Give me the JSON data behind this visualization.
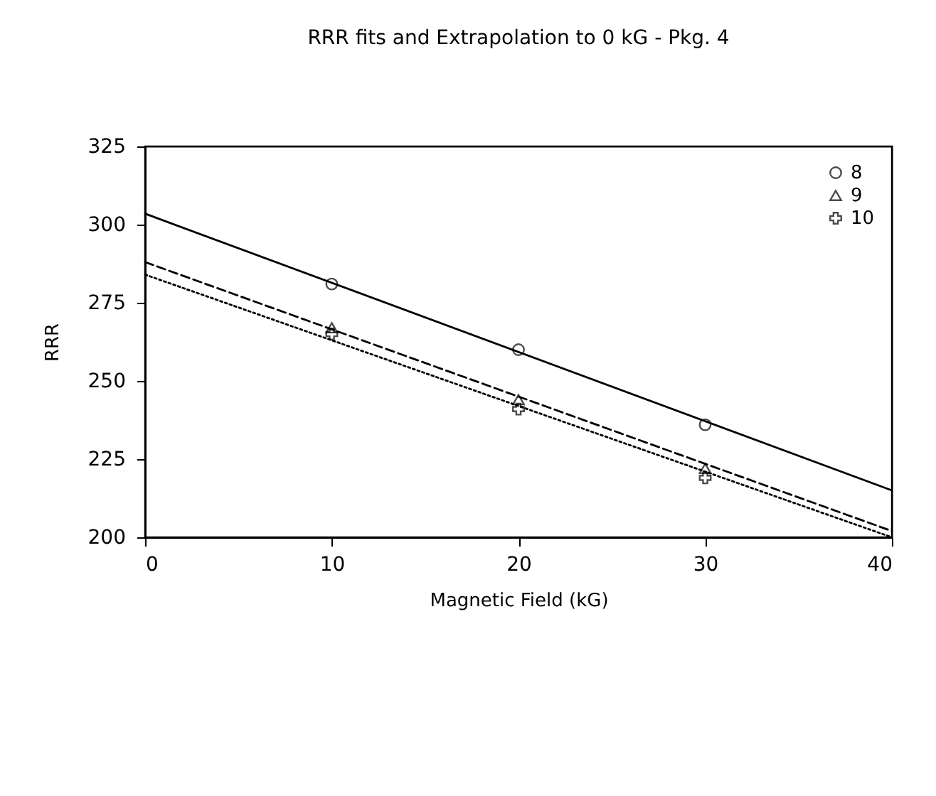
{
  "chart_data": {
    "type": "scatter",
    "title": "RRR fits and Extrapolation to 0 kG - Pkg. 4",
    "xlabel": "Magnetic Field (kG)",
    "ylabel": "RRR",
    "xlim": [
      0,
      40
    ],
    "xticks": [
      0,
      10,
      20,
      30,
      40
    ],
    "ylim": [
      200,
      325
    ],
    "yticks": [
      200,
      225,
      250,
      275,
      300,
      325
    ],
    "grid": false,
    "legend": "top right",
    "series": [
      {
        "name": "8",
        "marker": "circle",
        "color": "#000000",
        "x": [
          10,
          20,
          30
        ],
        "values": [
          281,
          260,
          236
        ]
      },
      {
        "name": "9",
        "marker": "triangle",
        "color": "#000000",
        "x": [
          10,
          20,
          30
        ],
        "values": [
          267,
          244,
          222
        ]
      },
      {
        "name": "10",
        "marker": "cross",
        "color": "#000000",
        "x": [
          10,
          20,
          30
        ],
        "values": [
          265,
          241,
          219
        ]
      },
      {
        "type": "line",
        "line_style": "solid",
        "color": "#000000",
        "x": [
          0,
          40
        ],
        "values": [
          303.5,
          215
        ]
      },
      {
        "type": "line",
        "line_style": "dashed",
        "color": "#000000",
        "x": [
          0,
          40
        ],
        "values": [
          288,
          202
        ]
      },
      {
        "type": "line",
        "line_style": "dotted",
        "color": "#000000",
        "x": [
          0,
          40
        ],
        "values": [
          284,
          200
        ]
      }
    ]
  }
}
